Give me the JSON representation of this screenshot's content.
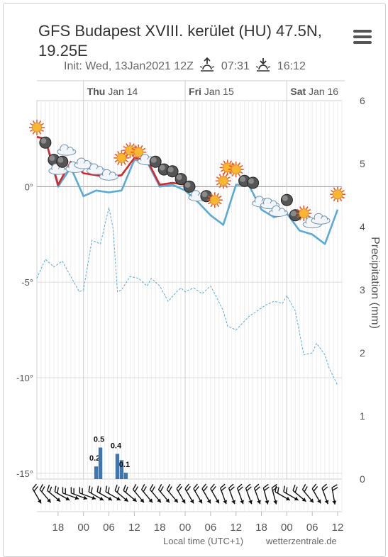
{
  "header": {
    "title": "GFS Budapest XVIII. kerület (HU) 47.5N, 19.25E",
    "init_label": "Init: Wed, 13Jan2021 12Z",
    "sunrise": "07:31",
    "sunset": "16:12",
    "sunrise_icon": "sunrise-icon",
    "sunset_icon": "sunset-icon",
    "menu_icon": "hamburger-menu-icon"
  },
  "footer": {
    "left_text": "Local time (UTC+1)",
    "right_text": "wetterzentrale.de"
  },
  "chart_data": {
    "type": "line",
    "day_labels": [
      {
        "day": "Thu",
        "date": "Jan 14",
        "hour": 24
      },
      {
        "day": "Fri",
        "date": "Jan 15",
        "hour": 48
      },
      {
        "day": "Sat",
        "date": "Jan 16",
        "hour": 72
      }
    ],
    "x_tick_labels": [
      "18",
      "00",
      "06",
      "12",
      "18",
      "00",
      "06",
      "12",
      "18",
      "00",
      "06",
      "12"
    ],
    "x_tick_hours": [
      18,
      24,
      30,
      36,
      42,
      48,
      54,
      60,
      66,
      72,
      78,
      84
    ],
    "x_range_hours": [
      13,
      85
    ],
    "y_left": {
      "ticks": [
        0,
        -5,
        -10,
        -15
      ],
      "labels": [
        "0°",
        "-5°",
        "-10°",
        "-15°"
      ],
      "range": [
        -15.3,
        4.5
      ]
    },
    "y_right": {
      "label": "Precipitation (mm)",
      "ticks": [
        0,
        1,
        2,
        3,
        4,
        5,
        6
      ],
      "range": [
        0,
        6
      ]
    },
    "series": [
      {
        "color": "#d62728",
        "x": [
          13,
          15,
          18,
          21,
          24,
          27,
          30,
          33,
          36,
          39,
          42,
          45,
          48
        ],
        "values": [
          2.6,
          2.5,
          0.1,
          1.3,
          0.7,
          0.6,
          0.5,
          0.6,
          1.5,
          1.4,
          0.1,
          0.2,
          0.1
        ]
      },
      {
        "color": "#5aaad8",
        "x": [
          13,
          15,
          18,
          21,
          24,
          27,
          30,
          33,
          36,
          39,
          42,
          45,
          48,
          51,
          54,
          57,
          60,
          63,
          66,
          69,
          72,
          75,
          78,
          81,
          84
        ],
        "values": [
          2.6,
          2.5,
          0.0,
          1.0,
          -0.5,
          -0.2,
          -0.3,
          -0.2,
          1.4,
          1.3,
          0.0,
          0.1,
          -0.2,
          -0.8,
          -1.5,
          -2.0,
          0.1,
          0.1,
          -1.2,
          -1.6,
          -1.4,
          -2.3,
          -2.5,
          -3.0,
          -1.2
        ]
      },
      {
        "color": "#5aaad8",
        "dashed": true,
        "x": [
          13,
          15,
          17,
          19,
          21,
          23,
          24,
          26,
          28,
          30,
          31,
          32,
          33,
          35,
          37,
          39,
          40,
          42,
          44,
          46,
          47,
          48,
          50,
          52,
          54,
          55,
          57,
          58,
          60,
          63,
          65,
          67,
          69,
          71,
          72,
          74,
          76,
          78,
          79,
          81,
          82,
          84
        ],
        "values": [
          -4.8,
          -3.8,
          -4.2,
          -3.9,
          -4.7,
          -5.5,
          -5.4,
          -2.8,
          -3.0,
          -1.1,
          -2.2,
          -5.5,
          -5.4,
          -4.7,
          -4.8,
          -5.2,
          -4.8,
          -5.2,
          -6.0,
          -5.5,
          -5.3,
          -5.5,
          -5.3,
          -5.6,
          -5.2,
          -5.6,
          -6.5,
          -7.3,
          -7.5,
          -6.8,
          -6.5,
          -6.2,
          -6.0,
          -6.1,
          -5.7,
          -6.5,
          -8.8,
          -8.7,
          -8.2,
          -8.8,
          -9.5,
          -10.4
        ]
      }
    ],
    "precipitation": {
      "color": "#3a78b5",
      "bars": [
        {
          "hour": 27,
          "value": 0.2,
          "label": "0.2"
        },
        {
          "hour": 28,
          "value": 0.5,
          "label": "0.5"
        },
        {
          "hour": 32,
          "value": 0.4,
          "label": "0.4"
        },
        {
          "hour": 33,
          "value": 0.3,
          "label": ""
        },
        {
          "hour": 34,
          "value": 0.1,
          "label": "0.1"
        }
      ]
    },
    "weather_icons": [
      {
        "hour": 13,
        "temp": 3.1,
        "icon": "sun-icon"
      },
      {
        "hour": 15,
        "temp": 2.3,
        "icon": "moon-icon"
      },
      {
        "hour": 17,
        "temp": 1.4,
        "icon": "moon-icon"
      },
      {
        "hour": 18,
        "temp": 0.9,
        "icon": "cloud-icon"
      },
      {
        "hour": 19,
        "temp": 1.3,
        "icon": "moon-icon"
      },
      {
        "hour": 20,
        "temp": 1.9,
        "icon": "cloud-icon"
      },
      {
        "hour": 22,
        "temp": 1.0,
        "icon": "cloud-icon"
      },
      {
        "hour": 24,
        "temp": 1.2,
        "icon": "cloud-icon"
      },
      {
        "hour": 27,
        "temp": 0.9,
        "icon": "cloud-icon"
      },
      {
        "hour": 30,
        "temp": 0.6,
        "icon": "cloud-icon"
      },
      {
        "hour": 33,
        "temp": 1.5,
        "icon": "sun-icon"
      },
      {
        "hour": 35,
        "temp": 1.9,
        "icon": "sun-icon"
      },
      {
        "hour": 37,
        "temp": 1.8,
        "icon": "sun-icon"
      },
      {
        "hour": 39,
        "temp": 1.4,
        "icon": "cloud-icon"
      },
      {
        "hour": 41,
        "temp": 1.3,
        "icon": "moon-icon"
      },
      {
        "hour": 43,
        "temp": 0.9,
        "icon": "moon-icon"
      },
      {
        "hour": 45,
        "temp": 0.8,
        "icon": "moon-icon"
      },
      {
        "hour": 47,
        "temp": 0.4,
        "icon": "moon-icon"
      },
      {
        "hour": 49,
        "temp": 0.0,
        "icon": "moon-icon"
      },
      {
        "hour": 51,
        "temp": -0.5,
        "icon": "cloud-icon"
      },
      {
        "hour": 53,
        "temp": -0.5,
        "icon": "moon-icon"
      },
      {
        "hour": 55,
        "temp": -0.7,
        "icon": "sun-icon"
      },
      {
        "hour": 57,
        "temp": 0.3,
        "icon": "sun-icon"
      },
      {
        "hour": 58,
        "temp": 1.0,
        "icon": "sun-icon"
      },
      {
        "hour": 60,
        "temp": 0.9,
        "icon": "sun-icon"
      },
      {
        "hour": 62,
        "temp": 0.3,
        "icon": "moon-icon"
      },
      {
        "hour": 64,
        "temp": 0.2,
        "icon": "moon-icon"
      },
      {
        "hour": 66,
        "temp": -0.8,
        "icon": "cloud-icon"
      },
      {
        "hour": 68,
        "temp": -0.9,
        "icon": "cloud-icon"
      },
      {
        "hour": 70,
        "temp": -1.3,
        "icon": "cloud-icon"
      },
      {
        "hour": 72,
        "temp": -0.7,
        "icon": "moon-icon"
      },
      {
        "hour": 74,
        "temp": -1.5,
        "icon": "moon-icon"
      },
      {
        "hour": 76,
        "temp": -1.4,
        "icon": "sun-icon"
      },
      {
        "hour": 78,
        "temp": -1.9,
        "icon": "cloud-icon"
      },
      {
        "hour": 80,
        "temp": -1.7,
        "icon": "cloud-icon"
      },
      {
        "hour": 84,
        "temp": -0.4,
        "icon": "sun-icon"
      }
    ],
    "wind_barbs": [
      {
        "hour": 13,
        "dir": 330
      },
      {
        "hour": 15,
        "dir": 320
      },
      {
        "hour": 17,
        "dir": 310
      },
      {
        "hour": 19,
        "dir": 300
      },
      {
        "hour": 21,
        "dir": 290
      },
      {
        "hour": 23,
        "dir": 290
      },
      {
        "hour": 25,
        "dir": 290
      },
      {
        "hour": 27,
        "dir": 300
      },
      {
        "hour": 29,
        "dir": 300
      },
      {
        "hour": 31,
        "dir": 300
      },
      {
        "hour": 33,
        "dir": 310
      },
      {
        "hour": 35,
        "dir": 310
      },
      {
        "hour": 37,
        "dir": 320
      },
      {
        "hour": 39,
        "dir": 320
      },
      {
        "hour": 41,
        "dir": 320
      },
      {
        "hour": 43,
        "dir": 320
      },
      {
        "hour": 45,
        "dir": 320
      },
      {
        "hour": 47,
        "dir": 330
      },
      {
        "hour": 49,
        "dir": 330
      },
      {
        "hour": 51,
        "dir": 330
      },
      {
        "hour": 53,
        "dir": 330
      },
      {
        "hour": 55,
        "dir": 330
      },
      {
        "hour": 57,
        "dir": 340
      },
      {
        "hour": 59,
        "dir": 340
      },
      {
        "hour": 61,
        "dir": 340
      },
      {
        "hour": 63,
        "dir": 340
      },
      {
        "hour": 65,
        "dir": 340
      },
      {
        "hour": 67,
        "dir": 345
      },
      {
        "hour": 69,
        "dir": 345
      },
      {
        "hour": 71,
        "dir": 300
      },
      {
        "hour": 73,
        "dir": 300
      },
      {
        "hour": 75,
        "dir": 310
      },
      {
        "hour": 77,
        "dir": 320
      },
      {
        "hour": 79,
        "dir": 330
      },
      {
        "hour": 81,
        "dir": 340
      },
      {
        "hour": 83,
        "dir": 350
      }
    ],
    "grid": true
  }
}
